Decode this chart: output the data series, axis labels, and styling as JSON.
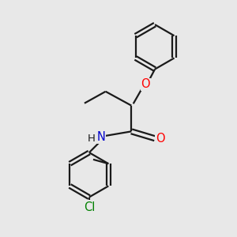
{
  "background_color": "#e8e8e8",
  "bond_color": "#1a1a1a",
  "O_color": "#ff0000",
  "N_color": "#0000cc",
  "Cl_color": "#008000",
  "line_width": 1.6,
  "font_size": 10.5,
  "figsize": [
    3.0,
    3.0
  ],
  "dpi": 100,
  "xlim": [
    0,
    10
  ],
  "ylim": [
    0,
    10
  ]
}
